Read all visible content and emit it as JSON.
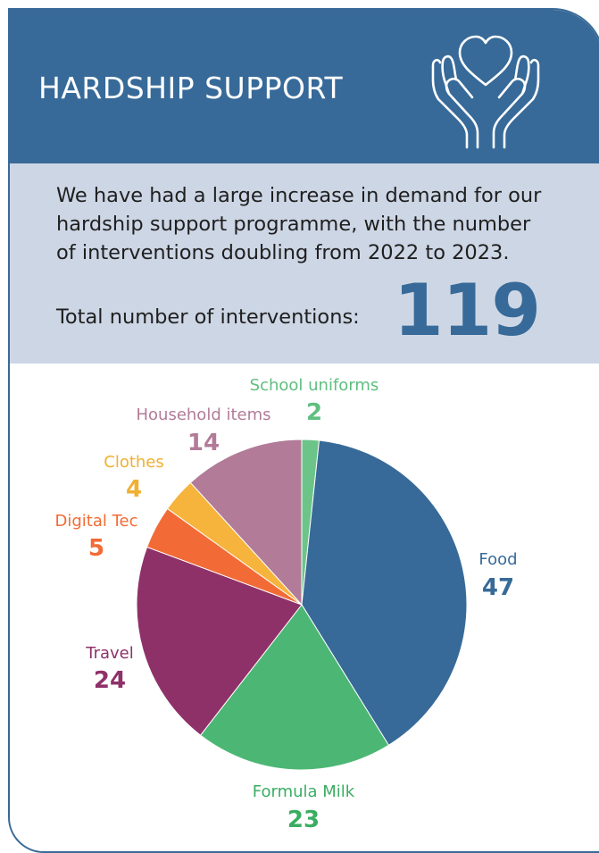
{
  "header": {
    "title": "HARDSHIP SUPPORT",
    "icon": "heart-in-hands-icon"
  },
  "intro": {
    "text": "We have had a large increase in demand for our hardship support programme, with the number of interventions doubling from 2022 to 2023.",
    "total_label": "Total number of interventions:",
    "total_value": "119"
  },
  "colors": {
    "header_bg": "#376a98",
    "intro_bg": "#cdd6e5"
  },
  "chart_data": {
    "type": "pie",
    "title": "",
    "total": 119,
    "slices": [
      {
        "label": "School uniforms",
        "value": 2,
        "color": "#6cc488",
        "label_color": "#5fbf7f"
      },
      {
        "label": "Food",
        "value": 47,
        "color": "#376a98",
        "label_color": "#376a98"
      },
      {
        "label": "Formula Milk",
        "value": 23,
        "color": "#4cb774",
        "label_color": "#3aad62"
      },
      {
        "label": "Travel",
        "value": 24,
        "color": "#8f3169",
        "label_color": "#8f3169"
      },
      {
        "label": "Digital Tec",
        "value": 5,
        "color": "#f26b36",
        "label_color": "#f26b36"
      },
      {
        "label": "Clothes",
        "value": 4,
        "color": "#f6b43c",
        "label_color": "#f0b033"
      },
      {
        "label": "Household items",
        "value": 14,
        "color": "#b27b98",
        "label_color": "#b27b98"
      }
    ]
  }
}
